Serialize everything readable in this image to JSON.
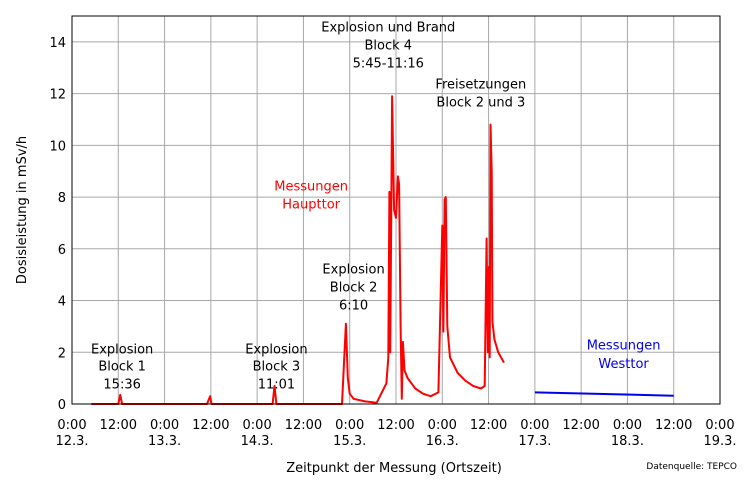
{
  "chart_data": {
    "type": "line",
    "title": "",
    "xlabel": "Zeitpunkt der Messung (Ortszeit)",
    "ylabel": "Dosisleistung in mSv/h",
    "ylim": [
      0,
      15
    ],
    "xlim_hours": [
      0,
      168
    ],
    "grid": true,
    "source": "Datenquelle: TEPCO",
    "y_ticks": [
      0,
      2,
      4,
      6,
      8,
      10,
      12,
      14
    ],
    "x_ticks": [
      {
        "h": 0,
        "time": "0:00",
        "date": "12.3."
      },
      {
        "h": 12,
        "time": "12:00",
        "date": ""
      },
      {
        "h": 24,
        "time": "0:00",
        "date": "13.3."
      },
      {
        "h": 36,
        "time": "12:00",
        "date": ""
      },
      {
        "h": 48,
        "time": "0:00",
        "date": "14.3."
      },
      {
        "h": 60,
        "time": "12:00",
        "date": ""
      },
      {
        "h": 72,
        "time": "0:00",
        "date": "15.3."
      },
      {
        "h": 84,
        "time": "12:00",
        "date": ""
      },
      {
        "h": 96,
        "time": "0:00",
        "date": "16.3."
      },
      {
        "h": 108,
        "time": "12:00",
        "date": ""
      },
      {
        "h": 120,
        "time": "0:00",
        "date": "17.3."
      },
      {
        "h": 132,
        "time": "12:00",
        "date": ""
      },
      {
        "h": 144,
        "time": "0:00",
        "date": "18.3."
      },
      {
        "h": 156,
        "time": "12:00",
        "date": ""
      },
      {
        "h": 168,
        "time": "0:00",
        "date": "19.3."
      }
    ],
    "series": [
      {
        "name": "Messungen Haupttor",
        "color": "#ff0000",
        "points": [
          [
            5,
            0
          ],
          [
            12,
            0
          ],
          [
            12.5,
            0.35
          ],
          [
            13,
            0
          ],
          [
            35,
            0
          ],
          [
            35.8,
            0.3
          ],
          [
            36.2,
            0
          ],
          [
            52,
            0
          ],
          [
            52.5,
            0.7
          ],
          [
            53,
            0
          ],
          [
            70,
            0
          ],
          [
            71,
            3.1
          ],
          [
            71.5,
            1.0
          ],
          [
            72,
            0.4
          ],
          [
            73,
            0.2
          ],
          [
            76,
            0.1
          ],
          [
            79,
            0.05
          ],
          [
            81.5,
            0.8
          ],
          [
            82,
            1.8
          ],
          [
            82.3,
            8.2
          ],
          [
            82.5,
            2.0
          ],
          [
            82.8,
            8.0
          ],
          [
            83,
            11.9
          ],
          [
            83.5,
            7.5
          ],
          [
            84,
            7.2
          ],
          [
            84.5,
            8.8
          ],
          [
            84.8,
            8.5
          ],
          [
            85.2,
            3.0
          ],
          [
            85.5,
            0.2
          ],
          [
            85.8,
            2.4
          ],
          [
            86.2,
            1.3
          ],
          [
            87,
            1.0
          ],
          [
            89,
            0.6
          ],
          [
            91,
            0.4
          ],
          [
            93,
            0.3
          ],
          [
            95,
            0.45
          ],
          [
            96,
            6.9
          ],
          [
            96.3,
            2.8
          ],
          [
            96.6,
            7.9
          ],
          [
            96.9,
            8.0
          ],
          [
            97.3,
            3.0
          ],
          [
            98,
            1.8
          ],
          [
            100,
            1.2
          ],
          [
            102,
            0.9
          ],
          [
            103,
            0.8
          ],
          [
            104,
            0.7
          ],
          [
            106,
            0.6
          ],
          [
            107,
            0.7
          ],
          [
            107.5,
            6.4
          ],
          [
            107.8,
            2.0
          ],
          [
            108.1,
            5.3
          ],
          [
            108.3,
            1.8
          ],
          [
            108.5,
            10.8
          ],
          [
            108.8,
            9.0
          ],
          [
            109,
            3.2
          ],
          [
            109.5,
            2.5
          ],
          [
            110.5,
            2.0
          ],
          [
            112,
            1.6
          ]
        ]
      },
      {
        "name": "Messungen Westtor",
        "color": "#0000ee",
        "points": [
          [
            120,
            0.45
          ],
          [
            156,
            0.32
          ]
        ]
      }
    ],
    "annotations": [
      {
        "lines": [
          "Explosion",
          "Block 1",
          "15:36"
        ],
        "h": 13,
        "y_lines": [
          1.95,
          1.3,
          0.6
        ],
        "color": "#000000"
      },
      {
        "lines": [
          "Explosion",
          "Block 3",
          "11:01"
        ],
        "h": 53,
        "y_lines": [
          1.95,
          1.3,
          0.6
        ],
        "color": "#000000"
      },
      {
        "lines": [
          "Explosion",
          "Block 2",
          "6:10"
        ],
        "h": 73,
        "y_lines": [
          5.05,
          4.35,
          3.65
        ],
        "color": "#000000"
      },
      {
        "lines": [
          "Explosion und Brand",
          "Block 4",
          "5:45-11:16"
        ],
        "h": 82,
        "y_lines": [
          14.4,
          13.7,
          13.0
        ],
        "color": "#000000"
      },
      {
        "lines": [
          "Freisetzungen",
          "Block 2 und 3"
        ],
        "h": 106,
        "y_lines": [
          12.2,
          11.5
        ],
        "color": "#000000"
      },
      {
        "lines": [
          "Messungen",
          "Haupttor"
        ],
        "h": 62,
        "y_lines": [
          8.25,
          7.55
        ],
        "color": "#ff0000"
      },
      {
        "lines": [
          "Messungen",
          "Westtor"
        ],
        "h": 143,
        "y_lines": [
          2.1,
          1.4
        ],
        "color": "#0000ee"
      }
    ]
  }
}
